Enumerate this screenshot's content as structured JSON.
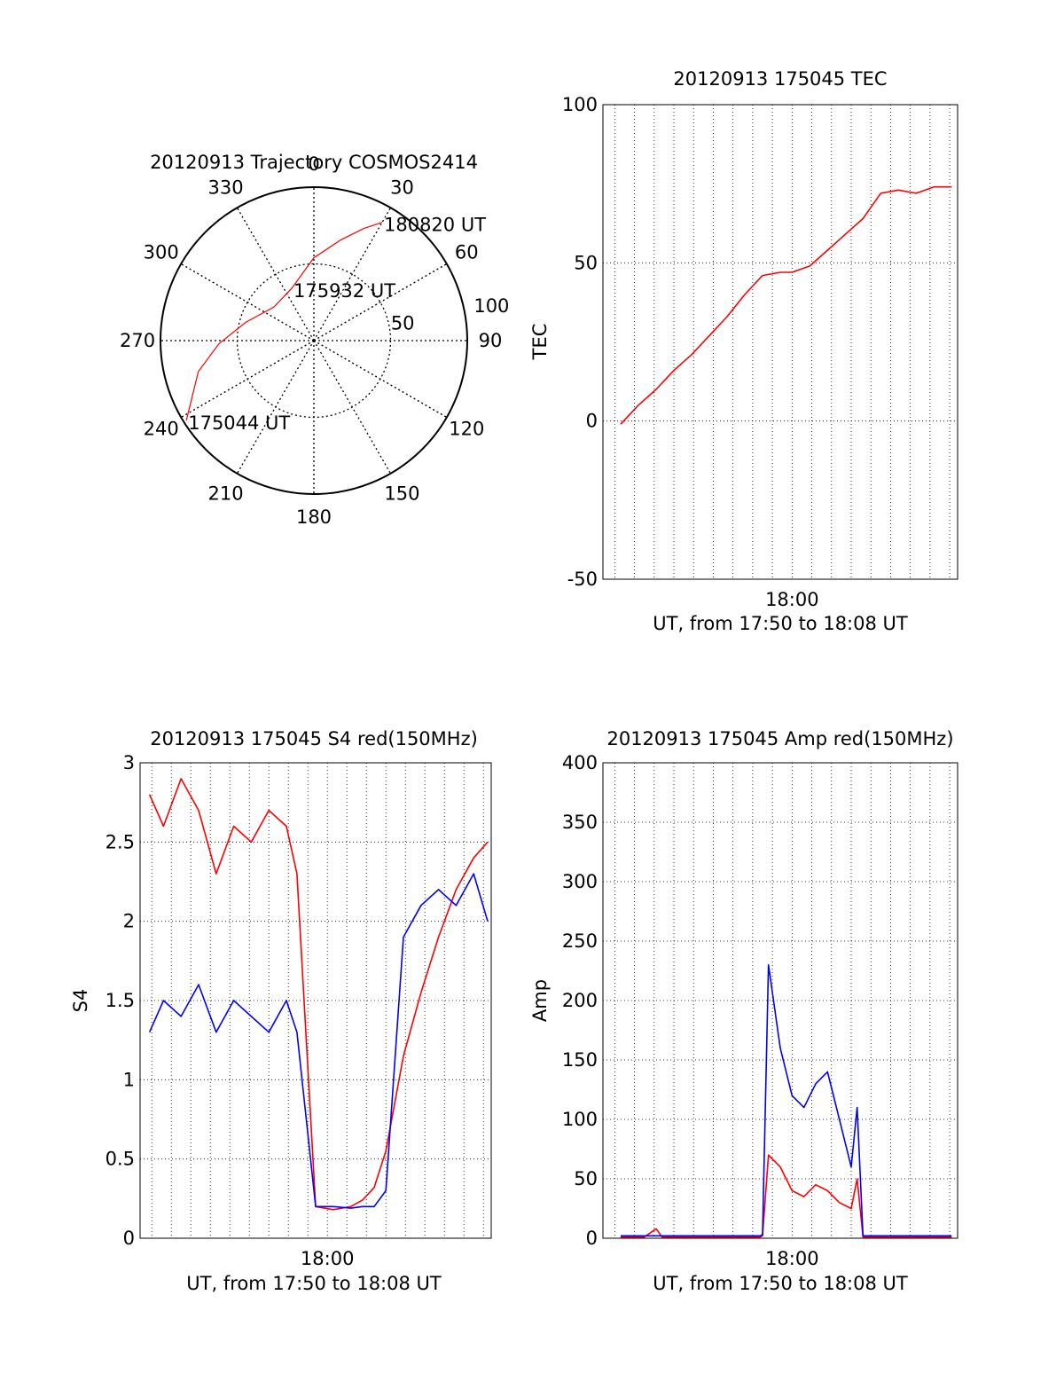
{
  "chart_data": [
    {
      "id": "polar",
      "type": "polar",
      "title": "20120913 Trajectory COSMOS2414",
      "angle_labels": [
        "0",
        "30",
        "60",
        "90",
        "120",
        "150",
        "180",
        "210",
        "240",
        "270",
        "300",
        "330"
      ],
      "angles": [
        0,
        30,
        60,
        90,
        120,
        150,
        180,
        210,
        240,
        270,
        300,
        330
      ],
      "ring_labels": [
        "50",
        "100"
      ],
      "rings": [
        50,
        100
      ],
      "grid": true,
      "series": [
        {
          "color": "#ff0000",
          "points": [
            {
              "az": 238,
              "r": 98,
              "label": "175044 UT"
            },
            {
              "az": 255,
              "r": 78
            },
            {
              "az": 268,
              "r": 62
            },
            {
              "az": 285,
              "r": 46
            },
            {
              "az": 310,
              "r": 34
            },
            {
              "az": 337,
              "r": 37,
              "label": "175932 UT"
            },
            {
              "az": 0,
              "r": 54
            },
            {
              "az": 15,
              "r": 68
            },
            {
              "az": 24,
              "r": 80
            },
            {
              "az": 30,
              "r": 89,
              "label": "180820 UT"
            }
          ]
        }
      ]
    },
    {
      "id": "tec",
      "type": "line",
      "title": "20120913 175045 TEC",
      "xlabel": "UT, from 17:50 to 18:08 UT",
      "ylabel": "TEC",
      "xlim": [
        17.84,
        18.14
      ],
      "ylim": [
        -50,
        100
      ],
      "yticks": [
        "100",
        "50",
        "0",
        "-50"
      ],
      "ytick_values": [
        100,
        50,
        0,
        -50
      ],
      "xticks": [
        "18:00"
      ],
      "xtick_values": [
        18.0
      ],
      "grid": true,
      "series": [
        {
          "color": "#ff0000",
          "x": [
            17.855,
            17.87,
            17.885,
            17.9,
            17.915,
            17.93,
            17.945,
            17.96,
            17.975,
            17.99,
            18.0,
            18.015,
            18.03,
            18.045,
            18.06,
            18.075,
            18.09,
            18.105,
            18.12,
            18.135
          ],
          "y": [
            -1,
            5,
            10,
            16,
            21,
            27,
            33,
            40,
            46,
            47,
            47,
            49,
            54,
            59,
            64,
            72,
            73,
            72,
            74,
            74
          ]
        }
      ]
    },
    {
      "id": "s4",
      "type": "line",
      "title": "20120913 175045 S4 red(150MHz)",
      "xlabel": "UT, from 17:50 to 18:08 UT",
      "ylabel": "S4",
      "xlim": [
        17.84,
        18.14
      ],
      "ylim": [
        0,
        3
      ],
      "yticks": [
        "3",
        "2.5",
        "2",
        "1.5",
        "1",
        "0.5",
        "0"
      ],
      "ytick_values": [
        3,
        2.5,
        2,
        1.5,
        1,
        0.5,
        0
      ],
      "xticks": [
        "18:00"
      ],
      "xtick_values": [
        18.0
      ],
      "grid": true,
      "series": [
        {
          "color": "#ff0000",
          "x": [
            17.848,
            17.86,
            17.875,
            17.89,
            17.905,
            17.92,
            17.935,
            17.95,
            17.965,
            17.974,
            17.99,
            18.005,
            18.02,
            18.03,
            18.04,
            18.05,
            18.065,
            18.08,
            18.095,
            18.11,
            18.125,
            18.137
          ],
          "y": [
            2.8,
            2.6,
            2.9,
            2.7,
            2.3,
            2.6,
            2.5,
            2.7,
            2.6,
            2.3,
            0.2,
            0.18,
            0.2,
            0.24,
            0.32,
            0.55,
            1.15,
            1.55,
            1.9,
            2.2,
            2.4,
            2.5
          ]
        },
        {
          "color": "#0000ff",
          "x": [
            17.848,
            17.86,
            17.875,
            17.89,
            17.905,
            17.92,
            17.935,
            17.95,
            17.965,
            17.974,
            17.99,
            18.005,
            18.02,
            18.03,
            18.04,
            18.05,
            18.065,
            18.08,
            18.095,
            18.11,
            18.125,
            18.137
          ],
          "y": [
            1.3,
            1.5,
            1.4,
            1.6,
            1.3,
            1.5,
            1.4,
            1.3,
            1.5,
            1.3,
            0.2,
            0.2,
            0.19,
            0.2,
            0.2,
            0.3,
            1.9,
            2.1,
            2.2,
            2.1,
            2.3,
            2.0
          ]
        }
      ]
    },
    {
      "id": "amp",
      "type": "line",
      "title": "20120913 175045 Amp red(150MHz)",
      "xlabel": "UT, from 17:50 to 18:08 UT",
      "ylabel": "Amp",
      "xlim": [
        17.84,
        18.14
      ],
      "ylim": [
        0,
        400
      ],
      "yticks": [
        "400",
        "350",
        "300",
        "250",
        "200",
        "150",
        "100",
        "50",
        "0"
      ],
      "ytick_values": [
        400,
        350,
        300,
        250,
        200,
        150,
        100,
        50,
        0
      ],
      "xticks": [
        "18:00"
      ],
      "xtick_values": [
        18.0
      ],
      "grid": true,
      "series": [
        {
          "color": "#ff0000",
          "x": [
            17.855,
            17.875,
            17.885,
            17.89,
            17.92,
            17.95,
            17.973,
            17.975,
            17.98,
            17.99,
            18.0,
            18.01,
            18.02,
            18.03,
            18.04,
            18.05,
            18.055,
            18.06,
            18.08,
            18.1,
            18.12,
            18.135
          ],
          "y": [
            1,
            1,
            8,
            1,
            1,
            1,
            1,
            2,
            70,
            60,
            40,
            35,
            45,
            40,
            30,
            25,
            50,
            1,
            1,
            1,
            1,
            1
          ]
        },
        {
          "color": "#0000ff",
          "x": [
            17.855,
            17.875,
            17.885,
            17.89,
            17.92,
            17.95,
            17.973,
            17.975,
            17.98,
            17.99,
            18.0,
            18.01,
            18.02,
            18.03,
            18.04,
            18.05,
            18.055,
            18.06,
            18.08,
            18.1,
            18.12,
            18.135
          ],
          "y": [
            2,
            2,
            2,
            2,
            2,
            2,
            2,
            3,
            230,
            160,
            120,
            110,
            130,
            140,
            100,
            60,
            110,
            2,
            2,
            2,
            2,
            2
          ]
        }
      ]
    }
  ]
}
